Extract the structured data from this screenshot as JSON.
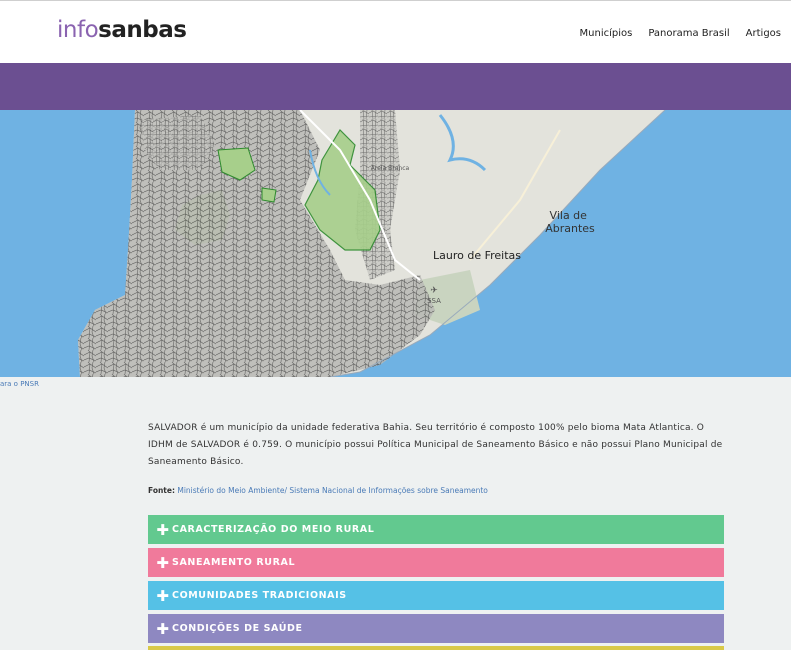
{
  "header": {
    "logo_light": "info",
    "logo_bold": "sanbas",
    "nav": [
      "Municípios",
      "Panorama Brasil",
      "Artigos"
    ]
  },
  "map": {
    "place_labels": [
      "Vila de Abrantes",
      "Lauro de Freitas",
      "SSA",
      "Areia Branca"
    ],
    "link_text": "ara o PNSR"
  },
  "content": {
    "description": "SALVADOR é um município da unidade federativa Bahia. Seu território é composto 100% pelo bioma Mata Atlantica. O IDHM de SALVADOR é 0.759. O município possui Política Municipal de Saneamento Básico e não possui Plano Municipal de Saneamento Básico.",
    "source_label": "Fonte:",
    "source_text": "Ministério do Meio Ambiente/ Sistema Nacional de Informações sobre Saneamento"
  },
  "accordion": [
    {
      "label": "CARACTERIZAÇÃO DO MEIO RURAL",
      "color": "#62c98f"
    },
    {
      "label": "SANEAMENTO RURAL",
      "color": "#f07a9b"
    },
    {
      "label": "COMUNIDADES TRADICIONAIS",
      "color": "#55c1e6"
    },
    {
      "label": "CONDIÇÕES DE SAÚDE",
      "color": "#8e88c1"
    },
    {
      "label": "",
      "color": "#d9c948"
    }
  ],
  "colors": {
    "header_band": "#6b4f91",
    "water": "#6fb2e3",
    "land": "#e3e3dc",
    "park": "#bfd8a3",
    "boundary": "#555555",
    "highlight": "#2e8b2e"
  },
  "icons": [
    "plus-icon",
    "airport-icon"
  ]
}
